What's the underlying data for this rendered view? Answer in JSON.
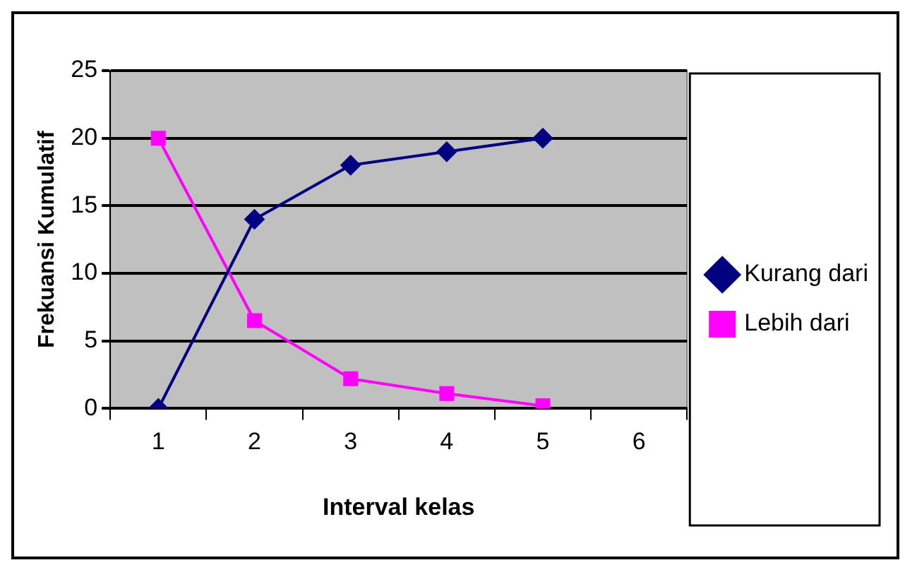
{
  "chart_data": {
    "type": "line",
    "xlabel": "Interval kelas",
    "ylabel": "Frekuansi Kumulatif",
    "categories": [
      "1",
      "2",
      "3",
      "4",
      "5",
      "6"
    ],
    "series": [
      {
        "name": "Kurang dari",
        "color": "#000080",
        "marker": "diamond",
        "values": [
          0,
          14,
          18,
          19,
          20,
          null
        ]
      },
      {
        "name": "Lebih dari",
        "color": "#ff00ff",
        "marker": "square",
        "values": [
          20,
          6.5,
          2.2,
          1.1,
          0.2,
          null
        ]
      }
    ],
    "ylim": [
      0,
      25
    ],
    "yticks": [
      0,
      5,
      10,
      15,
      20,
      25
    ],
    "grid": "y",
    "legend": "right",
    "line_style": "solid"
  }
}
